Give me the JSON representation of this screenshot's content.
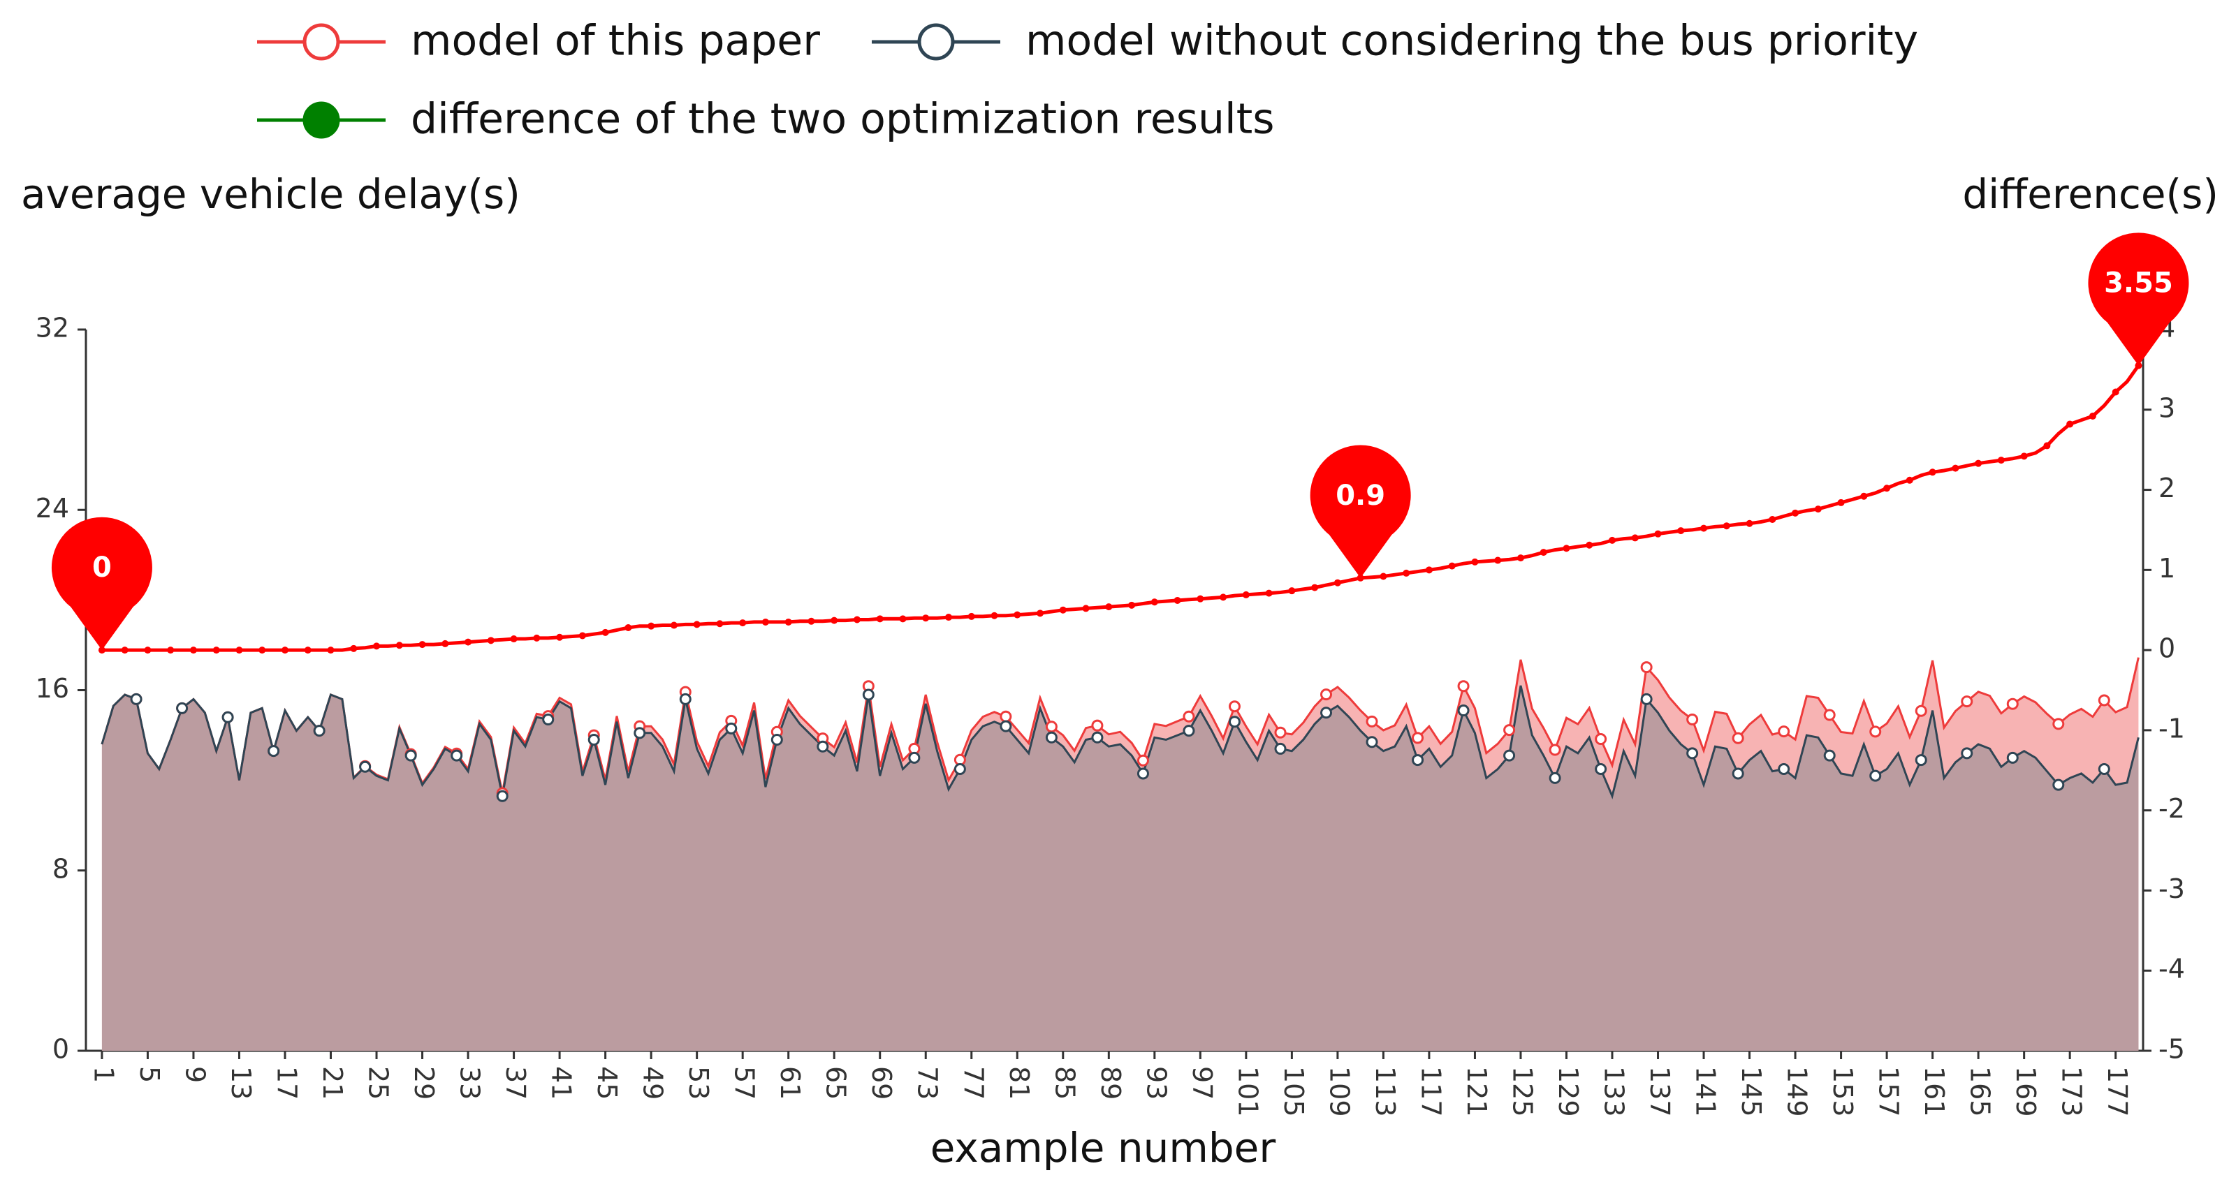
{
  "chart_data": {
    "type": "line",
    "y_label": "average vehicle delay(s)",
    "y2_label": "difference(s)",
    "x_label": "example number",
    "x": [
      1,
      2,
      3,
      4,
      5,
      6,
      7,
      8,
      9,
      10,
      11,
      12,
      13,
      14,
      15,
      16,
      17,
      18,
      19,
      20,
      21,
      22,
      23,
      24,
      25,
      26,
      27,
      28,
      29,
      30,
      31,
      32,
      33,
      34,
      35,
      36,
      37,
      38,
      39,
      40,
      41,
      42,
      43,
      44,
      45,
      46,
      47,
      48,
      49,
      50,
      51,
      52,
      53,
      54,
      55,
      56,
      57,
      58,
      59,
      60,
      61,
      62,
      63,
      64,
      65,
      66,
      67,
      68,
      69,
      70,
      71,
      72,
      73,
      74,
      75,
      76,
      77,
      78,
      79,
      80,
      81,
      82,
      83,
      84,
      85,
      86,
      87,
      88,
      89,
      90,
      91,
      92,
      93,
      94,
      95,
      96,
      97,
      98,
      99,
      100,
      101,
      102,
      103,
      104,
      105,
      106,
      107,
      108,
      109,
      110,
      111,
      112,
      113,
      114,
      115,
      116,
      117,
      118,
      119,
      120,
      121,
      122,
      123,
      124,
      125,
      126,
      127,
      128,
      129,
      130,
      131,
      132,
      133,
      134,
      135,
      136,
      137,
      138,
      139,
      140,
      141,
      142,
      143,
      144,
      145,
      146,
      147,
      148,
      149,
      150,
      151,
      152,
      153,
      154,
      155,
      156,
      157,
      158,
      159,
      160,
      161,
      162,
      163,
      164,
      165,
      166,
      167,
      168,
      169,
      170,
      171,
      172,
      173,
      174,
      175,
      176,
      177,
      178,
      179
    ],
    "xlim": [
      -0.4,
      179.4
    ],
    "xticks": [
      1,
      5,
      9,
      13,
      17,
      21,
      25,
      29,
      33,
      37,
      41,
      45,
      49,
      53,
      57,
      61,
      65,
      69,
      73,
      77,
      81,
      85,
      89,
      93,
      97,
      101,
      105,
      109,
      113,
      117,
      121,
      125,
      129,
      133,
      137,
      141,
      145,
      149,
      153,
      157,
      161,
      165,
      169,
      173,
      177
    ],
    "ylim": [
      0,
      32
    ],
    "yticks": [
      0,
      8,
      16,
      24,
      32
    ],
    "y2lim": [
      -5,
      4
    ],
    "y2ticks": [
      -5,
      -4,
      -3,
      -2,
      -1,
      0,
      1,
      2,
      3,
      4
    ],
    "grid": false,
    "series": [
      {
        "name": "model of this paper",
        "color": "#ee3b3b",
        "area_color": "#f7b3b3",
        "values": [
          13.6,
          15.3,
          15.8,
          15.6,
          13.2,
          12.5,
          13.8,
          15.2,
          15.6,
          15.0,
          13.3,
          14.8,
          12.0,
          15.0,
          15.2,
          13.3,
          15.1,
          14.2,
          14.8,
          14.2,
          15.8,
          15.6,
          12.12,
          12.63,
          12.25,
          12.05,
          14.36,
          13.16,
          11.87,
          12.57,
          13.48,
          13.19,
          12.5,
          14.61,
          13.92,
          11.43,
          14.34,
          13.64,
          14.95,
          14.85,
          15.66,
          15.37,
          12.38,
          14.0,
          12.02,
          14.85,
          12.38,
          14.4,
          14.4,
          13.81,
          12.71,
          15.92,
          13.72,
          12.63,
          14.13,
          14.64,
          13.54,
          15.45,
          12.05,
          14.15,
          15.55,
          14.86,
          14.36,
          13.86,
          13.47,
          14.57,
          12.78,
          16.18,
          12.59,
          14.49,
          12.89,
          13.4,
          15.8,
          13.7,
          12.01,
          12.91,
          14.22,
          14.82,
          15.03,
          14.83,
          14.24,
          13.65,
          15.66,
          14.38,
          14.0,
          13.31,
          14.32,
          14.43,
          14.04,
          14.15,
          13.66,
          12.88,
          14.5,
          14.41,
          14.62,
          14.83,
          15.74,
          14.85,
          13.86,
          15.28,
          14.39,
          13.6,
          14.91,
          14.12,
          14.04,
          14.56,
          15.28,
          15.81,
          16.14,
          15.67,
          15.1,
          14.61,
          14.22,
          14.44,
          15.36,
          13.88,
          14.4,
          13.62,
          14.15,
          16.18,
          15.2,
          13.21,
          13.62,
          14.23,
          17.35,
          15.18,
          14.32,
          13.35,
          14.77,
          14.49,
          15.21,
          13.83,
          12.67,
          14.69,
          13.6,
          17.02,
          16.45,
          15.67,
          15.09,
          14.7,
          13.32,
          15.04,
          14.95,
          13.87,
          14.48,
          14.9,
          14.03,
          14.17,
          13.81,
          15.74,
          15.66,
          14.9,
          14.14,
          14.08,
          15.52,
          14.16,
          14.52,
          15.28,
          13.92,
          15.08,
          17.32,
          14.34,
          15.07,
          15.5,
          15.93,
          15.75,
          14.97,
          15.39,
          15.72,
          15.46,
          14.95,
          14.5,
          14.92,
          15.17,
          14.82,
          15.55,
          15.02,
          15.25,
          17.45
        ]
      },
      {
        "name": "model without considering the bus priority",
        "color": "#2f4554",
        "area_color": "#bb9ca0",
        "values": [
          13.6,
          15.3,
          15.8,
          15.6,
          13.2,
          12.5,
          13.8,
          15.2,
          15.6,
          15.0,
          13.3,
          14.8,
          12.0,
          15.0,
          15.2,
          13.3,
          15.1,
          14.2,
          14.8,
          14.2,
          15.8,
          15.6,
          12.1,
          12.6,
          12.2,
          12.0,
          14.3,
          13.1,
          11.8,
          12.5,
          13.4,
          13.1,
          12.4,
          14.5,
          13.8,
          11.3,
          14.2,
          13.5,
          14.8,
          14.7,
          15.5,
          15.2,
          12.2,
          13.8,
          11.8,
          14.6,
          12.1,
          14.1,
          14.1,
          13.5,
          12.4,
          15.6,
          13.4,
          12.3,
          13.8,
          14.3,
          13.2,
          15.1,
          11.7,
          13.8,
          15.2,
          14.5,
          14.0,
          13.5,
          13.1,
          14.2,
          12.4,
          15.8,
          12.2,
          14.1,
          12.5,
          13.0,
          15.4,
          13.3,
          11.6,
          12.5,
          13.8,
          14.4,
          14.6,
          14.4,
          13.8,
          13.2,
          15.2,
          13.9,
          13.5,
          12.8,
          13.8,
          13.9,
          13.5,
          13.6,
          13.1,
          12.3,
          13.9,
          13.8,
          14.0,
          14.2,
          15.1,
          14.2,
          13.2,
          14.6,
          13.7,
          12.9,
          14.2,
          13.4,
          13.3,
          13.8,
          14.5,
          15.0,
          15.3,
          14.8,
          14.2,
          13.7,
          13.3,
          13.5,
          14.4,
          12.9,
          13.4,
          12.6,
          13.1,
          15.1,
          14.1,
          12.1,
          12.5,
          13.1,
          16.2,
          14.0,
          13.1,
          12.1,
          13.5,
          13.2,
          13.9,
          12.5,
          11.3,
          13.3,
          12.2,
          15.6,
          15.0,
          14.2,
          13.6,
          13.2,
          11.8,
          13.5,
          13.4,
          12.3,
          12.9,
          13.3,
          12.4,
          12.5,
          12.1,
          14.0,
          13.9,
          13.1,
          12.3,
          12.2,
          13.6,
          12.2,
          12.5,
          13.2,
          11.8,
          12.9,
          15.1,
          12.1,
          12.8,
          13.2,
          13.6,
          13.4,
          12.6,
          13.0,
          13.3,
          13.0,
          12.4,
          11.8,
          12.1,
          12.3,
          11.9,
          12.5,
          11.8,
          11.9,
          13.9
        ]
      },
      {
        "name": "difference of the two optimization results",
        "color": "#008000",
        "line_color": "#ff0000",
        "axis": "y2",
        "mark_points": [
          0,
          0.9,
          3.55
        ],
        "values": [
          0,
          0,
          0,
          0,
          0,
          0,
          0,
          0,
          0,
          0,
          0,
          0,
          0,
          0,
          0,
          0,
          0,
          0,
          0,
          0,
          0,
          0,
          0.02,
          0.03,
          0.05,
          0.05,
          0.06,
          0.06,
          0.07,
          0.07,
          0.08,
          0.09,
          0.1,
          0.11,
          0.12,
          0.13,
          0.14,
          0.14,
          0.15,
          0.15,
          0.16,
          0.17,
          0.18,
          0.2,
          0.22,
          0.25,
          0.28,
          0.3,
          0.3,
          0.31,
          0.31,
          0.32,
          0.32,
          0.33,
          0.33,
          0.34,
          0.34,
          0.35,
          0.35,
          0.35,
          0.35,
          0.36,
          0.36,
          0.36,
          0.37,
          0.37,
          0.38,
          0.38,
          0.39,
          0.39,
          0.39,
          0.4,
          0.4,
          0.4,
          0.41,
          0.41,
          0.42,
          0.42,
          0.43,
          0.43,
          0.44,
          0.45,
          0.46,
          0.48,
          0.5,
          0.51,
          0.52,
          0.53,
          0.54,
          0.55,
          0.56,
          0.58,
          0.6,
          0.61,
          0.62,
          0.63,
          0.64,
          0.65,
          0.66,
          0.68,
          0.69,
          0.7,
          0.71,
          0.72,
          0.74,
          0.76,
          0.78,
          0.81,
          0.84,
          0.87,
          0.9,
          0.91,
          0.92,
          0.94,
          0.96,
          0.98,
          1.0,
          1.02,
          1.05,
          1.08,
          1.1,
          1.11,
          1.12,
          1.13,
          1.15,
          1.18,
          1.22,
          1.25,
          1.27,
          1.29,
          1.31,
          1.33,
          1.37,
          1.39,
          1.4,
          1.42,
          1.45,
          1.47,
          1.49,
          1.5,
          1.52,
          1.54,
          1.55,
          1.57,
          1.58,
          1.6,
          1.63,
          1.67,
          1.71,
          1.74,
          1.76,
          1.8,
          1.84,
          1.88,
          1.92,
          1.96,
          2.02,
          2.08,
          2.12,
          2.18,
          2.22,
          2.24,
          2.27,
          2.3,
          2.33,
          2.35,
          2.37,
          2.39,
          2.42,
          2.46,
          2.55,
          2.7,
          2.82,
          2.87,
          2.92,
          3.05,
          3.22,
          3.35,
          3.55
        ]
      }
    ]
  }
}
